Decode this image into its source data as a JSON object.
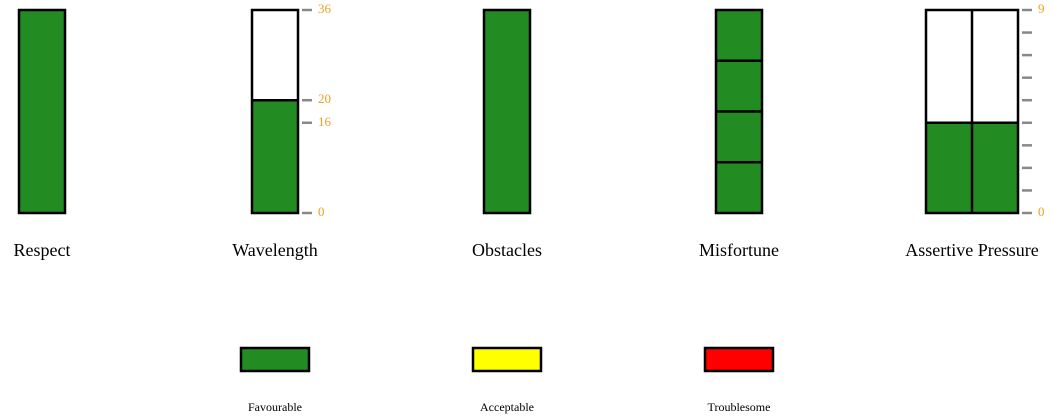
{
  "gauges": [
    {
      "label": "Respect",
      "color": "#228b22"
    },
    {
      "label": "Wavelength",
      "color": "#228b22",
      "value": 20,
      "ylim": [
        0,
        36
      ],
      "yticks": [
        0,
        16,
        20,
        36
      ]
    },
    {
      "label": "Obstacles",
      "color": "#228b22"
    },
    {
      "label": "Misfortune",
      "color": "#228b22",
      "rows": 4
    },
    {
      "label": "Assertive Pressure",
      "color": "#228b22",
      "value": 4,
      "ylim": [
        0,
        9
      ],
      "columns": 2,
      "yticks": [
        0,
        {
          "value": 1,
          "label": null
        },
        {
          "value": 2,
          "label": null
        },
        {
          "value": 3,
          "label": null
        },
        {
          "value": 4,
          "label": null
        },
        {
          "value": 5,
          "label": null
        },
        {
          "value": 6,
          "label": null
        },
        {
          "value": 7,
          "label": null
        },
        {
          "value": 8,
          "label": null
        },
        9
      ]
    }
  ],
  "legend": [
    {
      "label": "Favourable",
      "color": "#228b22"
    },
    {
      "label": "Acceptable",
      "color": "#ffff00"
    },
    {
      "label": "Troublesome",
      "color": "#ff0000"
    }
  ]
}
